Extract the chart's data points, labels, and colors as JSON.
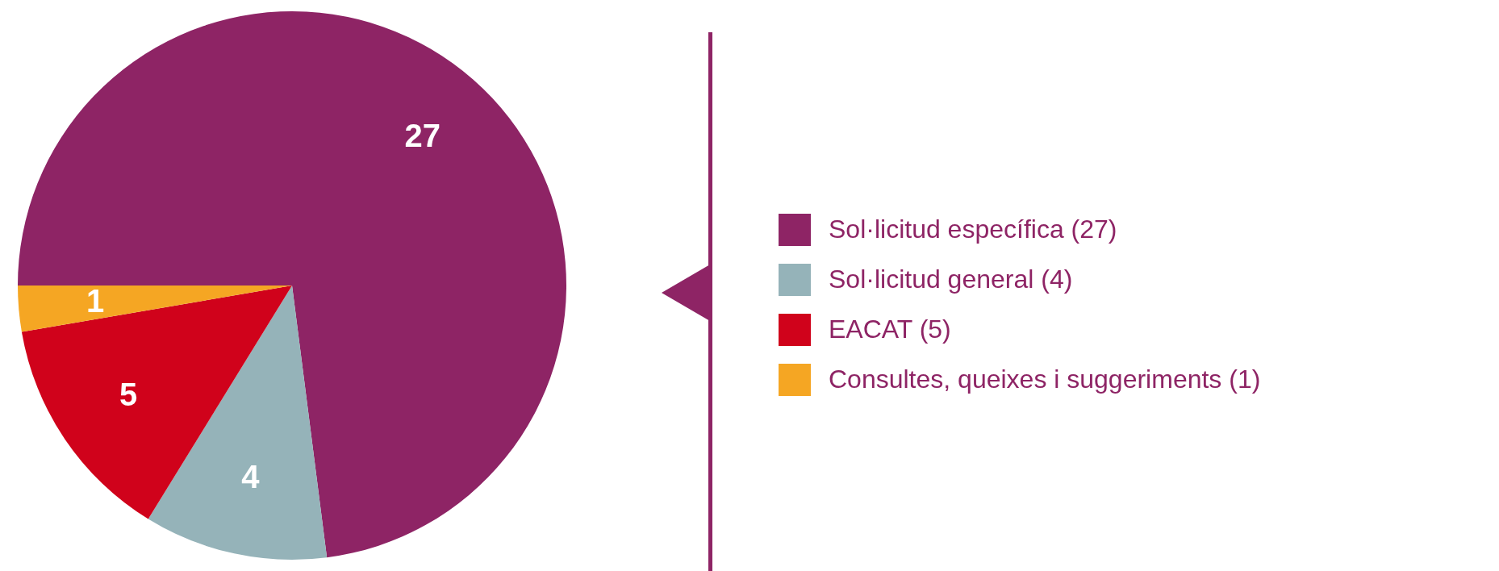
{
  "chart_data": {
    "type": "pie",
    "categories": [
      "Sol·licitud específica (27)",
      "Sol·licitud general (4)",
      "EACAT (5)",
      "Consultes, queixes i suggeriments (1)"
    ],
    "values": [
      27,
      4,
      5,
      1
    ],
    "colors": [
      "#8e2465",
      "#95b3b9",
      "#d0021b",
      "#f5a623"
    ],
    "data_labels": true,
    "legend": "right"
  }
}
